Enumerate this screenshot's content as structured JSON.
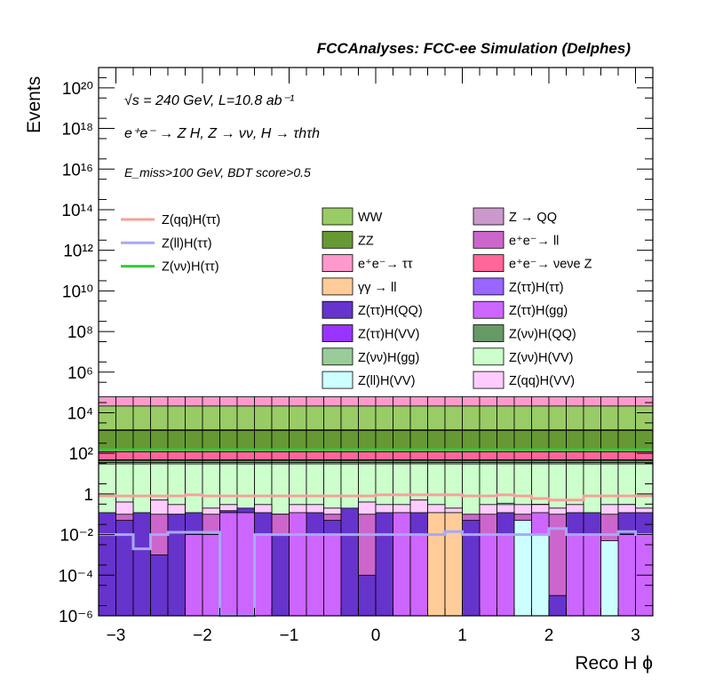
{
  "chart_data": {
    "type": "stacked-histogram",
    "title": "FCCAnalyses: FCC-ee Simulation (Delphes)",
    "annotations": {
      "energy": "√s = 240 GeV, L=10.8 ab⁻¹",
      "process": "e⁺e⁻ → Z H, Z → νν, H → τhτh",
      "cuts": "E_miss>100 GeV, BDT score>0.5"
    },
    "xlabel": "Reco H ϕ",
    "ylabel": "Events",
    "xlim": [
      -3.2,
      3.2
    ],
    "ylim": [
      1e-06,
      1e+21
    ],
    "log_y": true,
    "x_ticks": [
      -3,
      -2,
      -1,
      0,
      1,
      2,
      3
    ],
    "x_tick_labels": [
      "−3",
      "−2",
      "−1",
      "0",
      "1",
      "2",
      "3"
    ],
    "y_tick_labels": [
      {
        "exp": -6,
        "text": "10⁻⁶"
      },
      {
        "exp": -4,
        "text": "10⁻⁴"
      },
      {
        "exp": -2,
        "text": "10⁻²"
      },
      {
        "exp": 0,
        "text": "1"
      },
      {
        "exp": 2,
        "text": "10²"
      },
      {
        "exp": 4,
        "text": "10⁴"
      },
      {
        "exp": 6,
        "text": "10⁶"
      },
      {
        "exp": 8,
        "text": "10⁸"
      },
      {
        "exp": 10,
        "text": "10¹⁰"
      },
      {
        "exp": 12,
        "text": "10¹²"
      },
      {
        "exp": 14,
        "text": "10¹⁴"
      },
      {
        "exp": 16,
        "text": "10¹⁶"
      },
      {
        "exp": 18,
        "text": "10¹⁸"
      },
      {
        "exp": 20,
        "text": "10²⁰"
      }
    ],
    "bins": 32,
    "signal_series": [
      {
        "name": "Z(qq)H(ττ)",
        "color": "#f7a199",
        "values": [
          0.8,
          0.8,
          0.8,
          0.8,
          0.8,
          0.9,
          0.8,
          0.8,
          0.8,
          0.8,
          0.8,
          0.8,
          0.8,
          0.8,
          0.8,
          0.8,
          0.9,
          0.9,
          0.9,
          0.9,
          0.9,
          0.8,
          0.8,
          0.9,
          0.8,
          0.6,
          0.5,
          0.5,
          0.8,
          0.8,
          0.8,
          0.8
        ]
      },
      {
        "name": "Z(ll)H(ττ)",
        "color": "#a8a8f5",
        "values": [
          0.01,
          0.01,
          0.002,
          0.01,
          0.013,
          0.013,
          0.013,
          1e-06,
          1e-06,
          0.01,
          0.01,
          0.01,
          0.01,
          0.01,
          0.01,
          0.01,
          0.01,
          0.01,
          0.01,
          0.01,
          0.014,
          0.01,
          0.01,
          0.01,
          0.01,
          0.01,
          0.02,
          0.01,
          0.01,
          0.01,
          0.014,
          0.01
        ]
      },
      {
        "name": "Z(νν)H(ττ)",
        "color": "#33cc33",
        "values": [
          150,
          150,
          150,
          150,
          150,
          150,
          150,
          150,
          150,
          150,
          150,
          150,
          150,
          150,
          150,
          150,
          150,
          150,
          150,
          150,
          150,
          150,
          150,
          150,
          150,
          150,
          150,
          150,
          150,
          150,
          150,
          150
        ]
      }
    ],
    "stack_series": [
      {
        "name": "Z(qq)H(VV)",
        "color": "#ffccff",
        "values": [
          0.05,
          0.4,
          0.1,
          0.5,
          0.3,
          0.05,
          0.2,
          0.3,
          0.05,
          0.3,
          0.1,
          0.3,
          0.3,
          0.2,
          0.05,
          0.4,
          0.3,
          0.3,
          0.5,
          0.3,
          0.2,
          0.05,
          0.3,
          0.3,
          0.3,
          0.3,
          0.2,
          0.3,
          0.05,
          0.3,
          0.3,
          0.2
        ]
      },
      {
        "name": "Z(ll)H(VV)",
        "color": "#ccffff",
        "values": [
          0,
          0,
          0,
          0,
          0,
          0,
          0,
          0,
          0,
          0,
          0,
          0,
          0,
          0,
          0,
          0,
          0,
          0,
          0,
          0,
          0,
          0,
          0,
          0.05,
          0,
          0.01,
          0,
          0,
          0,
          0,
          0.005,
          0
        ]
      },
      {
        "name": "Z(νν)H(VV)",
        "color": "#ccffcc",
        "values": [
          30,
          30,
          30,
          30,
          30,
          30,
          30,
          30,
          30,
          30,
          30,
          30,
          30,
          30,
          30,
          30,
          30,
          30,
          30,
          30,
          30,
          30,
          30,
          30,
          30,
          30,
          30,
          30,
          30,
          30,
          30,
          30
        ]
      },
      {
        "name": "Z(νν)H(gg)",
        "color": "#99cc99",
        "values": [
          5,
          5,
          5,
          5,
          5,
          5,
          5,
          5,
          5,
          5,
          5,
          5,
          5,
          5,
          5,
          5,
          5,
          5,
          5,
          5,
          5,
          5,
          5,
          5,
          5,
          5,
          5,
          5,
          5,
          5,
          5,
          5
        ]
      },
      {
        "name": "Z(νν)H(QQ)",
        "color": "#669966",
        "values": [
          10,
          10,
          10,
          10,
          10,
          10,
          10,
          10,
          10,
          10,
          10,
          10,
          10,
          10,
          10,
          10,
          10,
          10,
          10,
          10,
          10,
          10,
          10,
          10,
          10,
          10,
          10,
          10,
          10,
          10,
          10,
          10
        ]
      },
      {
        "name": "Z(ττ)H(VV)",
        "color": "#9933ff",
        "values": [
          0,
          0,
          0,
          0,
          0,
          0,
          0,
          0,
          0,
          0,
          0,
          0,
          0,
          0,
          0,
          0,
          0,
          0,
          0,
          0,
          0,
          0,
          0,
          0,
          0,
          0,
          0,
          0,
          0,
          0,
          0,
          0
        ]
      },
      {
        "name": "Z(ττ)H(gg)",
        "color": "#cc66ff",
        "values": [
          0.5,
          0.5,
          0.5,
          0.5,
          0.5,
          0.5,
          0.5,
          0.5,
          0.5,
          0.5,
          0.5,
          0.5,
          0.5,
          0.5,
          0.5,
          0.5,
          0.5,
          0.5,
          0.5,
          0.5,
          0.5,
          0.5,
          0.5,
          0.5,
          0.5,
          0.5,
          0.5,
          0.5,
          0.5,
          0.5,
          0.5,
          0.5
        ]
      },
      {
        "name": "Z(ττ)H(QQ)",
        "color": "#6633cc",
        "values": [
          0.3,
          0.3,
          0.3,
          0.3,
          0.3,
          0.3,
          0.3,
          0.3,
          0.3,
          0.3,
          0.3,
          0.3,
          0.3,
          0.3,
          0.3,
          0.3,
          0.3,
          0.3,
          0.3,
          0.3,
          0.3,
          0.3,
          0.3,
          0.3,
          0.3,
          0.3,
          0.3,
          0.3,
          0.3,
          0.3,
          0.3,
          0.3
        ]
      },
      {
        "name": "Z(ττ)H(ττ)",
        "color": "#9966ff",
        "values": [
          2,
          2,
          2,
          2,
          2,
          2,
          2,
          2,
          2,
          2,
          2,
          2,
          2,
          2,
          2,
          2,
          2,
          2,
          2,
          2,
          2,
          2,
          2,
          2,
          2,
          2,
          2,
          2,
          2,
          2,
          2,
          2
        ]
      },
      {
        "name": "γγ → ll",
        "color": "#ffcc99",
        "values": [
          0,
          0,
          0,
          0,
          0,
          0,
          0,
          0,
          0,
          0,
          0,
          0,
          0,
          0,
          0,
          0,
          0,
          0,
          0,
          0,
          0,
          0,
          0,
          0,
          0,
          0,
          0,
          0,
          0,
          0,
          0,
          0
        ]
      },
      {
        "name": "e⁺e⁻→ νeνe Z",
        "color": "#ff6699",
        "values": [
          70,
          70,
          70,
          70,
          70,
          70,
          70,
          70,
          70,
          70,
          70,
          70,
          70,
          70,
          70,
          70,
          70,
          70,
          70,
          70,
          70,
          70,
          70,
          70,
          70,
          70,
          70,
          70,
          70,
          70,
          70,
          70
        ]
      },
      {
        "name": "e⁺e⁻→ ll",
        "color": "#cc66cc",
        "values": [
          20,
          20,
          20,
          20,
          20,
          20,
          20,
          20,
          20,
          20,
          20,
          20,
          20,
          20,
          20,
          20,
          20,
          20,
          20,
          20,
          20,
          20,
          20,
          20,
          20,
          20,
          20,
          20,
          20,
          20,
          20,
          20
        ]
      },
      {
        "name": "ZZ",
        "color": "#669933",
        "values": [
          1200,
          1200,
          1200,
          1200,
          1200,
          1200,
          1200,
          1200,
          1200,
          1200,
          1200,
          1200,
          1200,
          1200,
          1200,
          1200,
          1200,
          1200,
          1200,
          1200,
          1200,
          1200,
          1200,
          1200,
          1200,
          1200,
          1200,
          1200,
          1200,
          1200,
          1200,
          1200
        ]
      },
      {
        "name": "Z → QQ",
        "color": "#cc99cc",
        "values": [
          100,
          100,
          100,
          100,
          100,
          100,
          100,
          100,
          100,
          100,
          100,
          100,
          100,
          100,
          100,
          100,
          100,
          100,
          100,
          100,
          100,
          100,
          100,
          100,
          100,
          100,
          100,
          100,
          100,
          100,
          100,
          100
        ]
      },
      {
        "name": "WW",
        "color": "#99cc66",
        "values": [
          20000,
          20000,
          20000,
          20000,
          20000,
          20000,
          20000,
          20000,
          20000,
          20000,
          20000,
          20000,
          20000,
          20000,
          20000,
          20000,
          20000,
          20000,
          20000,
          20000,
          20000,
          20000,
          20000,
          20000,
          20000,
          20000,
          20000,
          20000,
          20000,
          20000,
          20000,
          20000
        ]
      },
      {
        "name": "e⁺e⁻→ ττ",
        "color": "#ff99cc",
        "values": [
          40000,
          40000,
          40000,
          40000,
          40000,
          40000,
          40000,
          40000,
          40000,
          40000,
          40000,
          40000,
          40000,
          40000,
          40000,
          40000,
          40000,
          40000,
          40000,
          40000,
          40000,
          40000,
          40000,
          40000,
          40000,
          40000,
          40000,
          40000,
          40000,
          40000,
          40000,
          40000
        ]
      }
    ],
    "low_bins": [
      {
        "color": "#cc66cc",
        "top": [
          0.1,
          0.1,
          0.1,
          0.1,
          0.1,
          0.1,
          0.1,
          0.1,
          0.1,
          0.1,
          0.1,
          0.1,
          0.1,
          0.1,
          0.1,
          0.1,
          0.1,
          0.1,
          0.1,
          0.1,
          0.1,
          0.1,
          0.1,
          0.1,
          0.1,
          0.1,
          0.1,
          0.1,
          0.1,
          0.1,
          0.1,
          0.1
        ]
      },
      {
        "color": "#6633cc",
        "top": [
          0.12,
          0.05,
          0.12,
          0.001,
          0.1,
          0.12,
          0.01,
          0.15,
          0.2,
          0.12,
          0.01,
          0.0001,
          0.12,
          0.05,
          0.2,
          0.0001,
          0.12,
          0.12,
          0.12,
          0.1,
          0.12,
          0.05,
          0.0001,
          0.12,
          0.002,
          0.05,
          1e-05,
          0.12,
          0.12,
          0.0001,
          0.12,
          0.12
        ]
      },
      {
        "color": "#cc66ff",
        "top": [
          0,
          0,
          0,
          0,
          0,
          0.01,
          0.01,
          0.12,
          0.12,
          0.01,
          0,
          0.12,
          0.01,
          0.01,
          0,
          0,
          0,
          0.12,
          0.01,
          0.12,
          0,
          0,
          0.01,
          0.01,
          0.01,
          0.12,
          0,
          0.01,
          0.01,
          0,
          0.01,
          0.01
        ]
      },
      {
        "color": "#ffcc99",
        "top": [
          0,
          0,
          0,
          0,
          0,
          0,
          0,
          0,
          0,
          0,
          0,
          0,
          0,
          0,
          0,
          0,
          0,
          0,
          0,
          0.12,
          0.12,
          0,
          0,
          0,
          0,
          0,
          0,
          0,
          0,
          0,
          0,
          0
        ]
      },
      {
        "color": "#ccffff",
        "top": [
          0,
          0,
          0,
          0,
          0,
          0,
          0,
          0,
          0,
          0,
          0,
          0,
          0,
          0,
          0,
          0,
          0,
          0,
          0,
          0,
          0,
          0,
          0,
          0,
          0.05,
          0.01,
          0,
          0,
          0,
          0.005,
          0,
          0
        ]
      }
    ],
    "legend_columns": [
      {
        "entries": [
          {
            "label": "Z(qq)H(ττ)",
            "kind": "line",
            "color": "#f7a199"
          },
          {
            "label": "Z(ll)H(ττ)",
            "kind": "line",
            "color": "#a8a8f5"
          },
          {
            "label": "Z(νν)H(ττ)",
            "kind": "line",
            "color": "#33cc33"
          }
        ]
      },
      {
        "entries": [
          {
            "label": "WW",
            "color": "#99cc66"
          },
          {
            "label": "ZZ",
            "color": "#669933"
          },
          {
            "label": "e⁺e⁻→ ττ",
            "color": "#ff99cc"
          },
          {
            "label": "γγ → ll",
            "color": "#ffcc99"
          },
          {
            "label": "Z(ττ)H(QQ)",
            "color": "#6633cc"
          },
          {
            "label": "Z(ττ)H(VV)",
            "color": "#9933ff"
          },
          {
            "label": "Z(νν)H(gg)",
            "color": "#99cc99"
          },
          {
            "label": "Z(ll)H(VV)",
            "color": "#ccffff"
          }
        ]
      },
      {
        "entries": [
          {
            "label": "Z → QQ",
            "color": "#cc99cc"
          },
          {
            "label": "e⁺e⁻→ ll",
            "color": "#cc66cc"
          },
          {
            "label": "e⁺e⁻→ νeνe Z",
            "color": "#ff6699"
          },
          {
            "label": "Z(ττ)H(ττ)",
            "color": "#9966ff"
          },
          {
            "label": "Z(ττ)H(gg)",
            "color": "#cc66ff"
          },
          {
            "label": "Z(νν)H(QQ)",
            "color": "#669966"
          },
          {
            "label": "Z(νν)H(VV)",
            "color": "#ccffcc"
          },
          {
            "label": "Z(qq)H(VV)",
            "color": "#ffccff"
          }
        ]
      }
    ]
  }
}
